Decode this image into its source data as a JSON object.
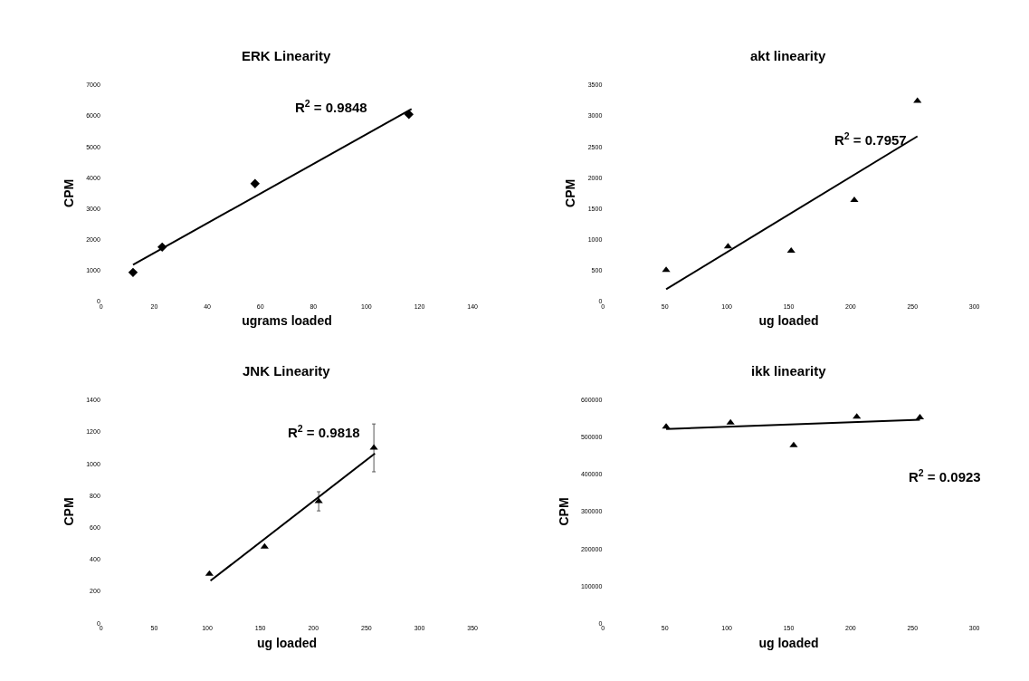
{
  "chart_data": [
    {
      "type": "scatter",
      "title": "ERK Linearity",
      "xlabel": "ugrams loaded",
      "ylabel": "CPM",
      "grid": false,
      "xlim": [
        0,
        140
      ],
      "xticks": [
        0,
        20,
        40,
        60,
        80,
        100,
        120,
        140
      ],
      "ylim": [
        0,
        7000
      ],
      "yticks": [
        0,
        1000,
        2000,
        3000,
        4000,
        5000,
        6000,
        7000
      ],
      "annotations": [
        "R$^{2}$ = 0.9848"
      ],
      "series": [
        {
          "color": "#000000",
          "marker": "diamond",
          "x": [
            12,
            23,
            58,
            116
          ],
          "values": [
            940,
            1760,
            3810,
            6050
          ]
        },
        {
          "type": "line",
          "marker": "none",
          "color": "#000000",
          "x": [
            12,
            117
          ],
          "values": [
            1190,
            6220
          ]
        }
      ]
    },
    {
      "type": "scatter",
      "title": "akt linearity",
      "xlabel": "ug loaded",
      "ylabel": "CPM",
      "grid": false,
      "xlim": [
        0,
        300
      ],
      "xticks": [
        0,
        50,
        100,
        150,
        200,
        250,
        300
      ],
      "ylim": [
        0,
        3500
      ],
      "yticks": [
        0,
        500,
        1000,
        1500,
        2000,
        2500,
        3000,
        3500
      ],
      "annotations": [
        "R$^{2}$ = 0.7957"
      ],
      "series": [
        {
          "color": "#000000",
          "marker": "triangle",
          "x": [
            51,
            101,
            152,
            203,
            254
          ],
          "values": [
            510,
            890,
            820,
            1640,
            3240
          ]
        },
        {
          "type": "line",
          "marker": "none",
          "color": "#000000",
          "x": [
            51,
            254
          ],
          "values": [
            200,
            2670
          ]
        }
      ]
    },
    {
      "type": "scatter",
      "title": "JNK Linearity",
      "xlabel": "ug loaded",
      "ylabel": "CPM",
      "grid": false,
      "xlim": [
        0,
        350
      ],
      "xticks": [
        0,
        50,
        100,
        150,
        200,
        250,
        300,
        350
      ],
      "ylim": [
        0,
        1400
      ],
      "yticks": [
        0,
        200,
        400,
        600,
        800,
        1000,
        1200,
        1400
      ],
      "annotations": [
        "R$^{2}$ = 0.9818"
      ],
      "series": [
        {
          "color": "#000000",
          "marker": "triangle",
          "x": [
            102,
            154,
            205,
            257
          ],
          "values": [
            310,
            480,
            765,
            1100
          ],
          "errors": [
            null,
            null,
            60,
            150
          ]
        },
        {
          "type": "line",
          "marker": "none",
          "color": "#000000",
          "x": [
            103,
            258
          ],
          "values": [
            267,
            1065
          ]
        }
      ]
    },
    {
      "type": "scatter",
      "title": "ikk linearity",
      "xlabel": "ug loaded",
      "ylabel": "CPM",
      "grid": false,
      "xlim": [
        0,
        300
      ],
      "xticks": [
        0,
        50,
        100,
        150,
        200,
        250,
        300
      ],
      "ylim": [
        0,
        600000
      ],
      "yticks": [
        0,
        100000,
        200000,
        300000,
        400000,
        500000,
        600000
      ],
      "annotations": [
        "R$^{2}$ = 0.0923"
      ],
      "series": [
        {
          "color": "#000000",
          "marker": "triangle",
          "x": [
            51,
            103,
            154,
            205,
            256
          ],
          "values": [
            528000,
            539000,
            478000,
            555000,
            553000
          ]
        },
        {
          "type": "line",
          "marker": "none",
          "color": "#000000",
          "x": [
            51,
            256
          ],
          "values": [
            522000,
            547000
          ]
        }
      ]
    }
  ]
}
